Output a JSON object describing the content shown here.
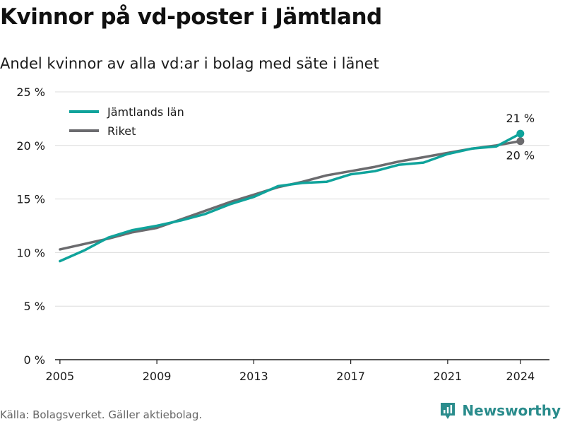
{
  "title": "Kvinnor på vd-poster i Jämtland",
  "subtitle": "Andel kvinnor av alla vd:ar i bolag med säte i länet",
  "source": "Källa: Bolagsverket. Gäller aktiebolag.",
  "brand": "Newsworthy",
  "colors": {
    "jamtland": "#0fa39b",
    "riket": "#6b6b6e",
    "grid": "#dcdcdc",
    "axis": "#1a1a1a"
  },
  "chart_data": {
    "type": "line",
    "title": "Kvinnor på vd-poster i Jämtland",
    "subtitle": "Andel kvinnor av alla vd:ar i bolag med säte i länet",
    "xlabel": "",
    "ylabel": "",
    "x": [
      2005,
      2006,
      2007,
      2008,
      2009,
      2010,
      2011,
      2012,
      2013,
      2014,
      2015,
      2016,
      2017,
      2018,
      2019,
      2020,
      2021,
      2022,
      2023,
      2024
    ],
    "xlim": [
      2004.8,
      2025.2
    ],
    "ylim": [
      0,
      25
    ],
    "x_ticks": [
      2005,
      2009,
      2013,
      2017,
      2021,
      2024
    ],
    "y_ticks": [
      0,
      5,
      10,
      15,
      20,
      25
    ],
    "y_tick_labels": [
      "0 %",
      "5 %",
      "10 %",
      "15 %",
      "20 %",
      "25 %"
    ],
    "grid": true,
    "legend_position": "top-left",
    "series": [
      {
        "name": "Jämtlands län",
        "color": "#0fa39b",
        "values": [
          9.2,
          10.2,
          11.4,
          12.1,
          12.5,
          13.0,
          13.6,
          14.5,
          15.2,
          16.2,
          16.5,
          16.6,
          17.3,
          17.6,
          18.2,
          18.4,
          19.2,
          19.7,
          19.9,
          21.1
        ],
        "end_label": "21 %"
      },
      {
        "name": "Riket",
        "color": "#6b6b6e",
        "values": [
          10.3,
          10.8,
          11.3,
          11.9,
          12.3,
          13.1,
          13.9,
          14.7,
          15.4,
          16.1,
          16.6,
          17.2,
          17.6,
          18.0,
          18.5,
          18.9,
          19.3,
          19.7,
          20.0,
          20.4
        ],
        "end_label": "20 %"
      }
    ]
  }
}
